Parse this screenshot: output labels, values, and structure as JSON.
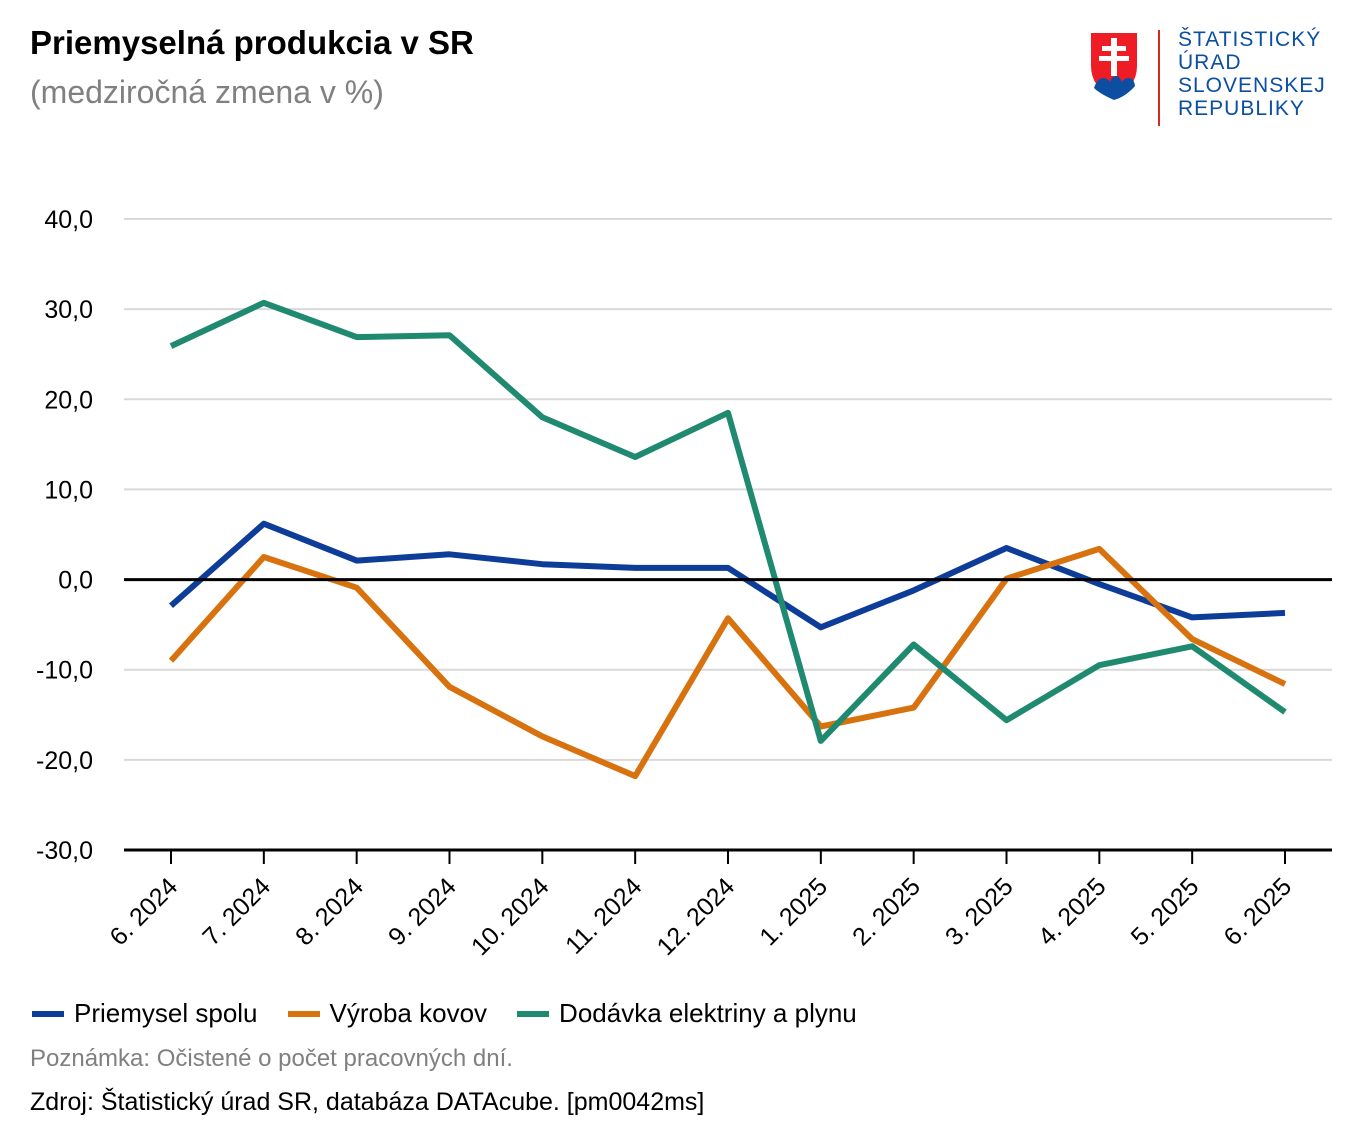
{
  "title": "Priemyselná produkcia v SR",
  "subtitle": "(medziročná zmena v %)",
  "logo": {
    "lines": [
      "ŠTATISTICKÝ",
      "ÚRAD",
      "SLOVENSKEJ",
      "REPUBLIKY"
    ],
    "icon": "slovak-coat-of-arms-icon"
  },
  "colors": {
    "priemysel": "#0e3d99",
    "kovy": "#d7720f",
    "elektrina": "#1f8a70",
    "grid": "#d9d9d9",
    "axis": "#000000"
  },
  "chart_data": {
    "type": "line",
    "categories": [
      "6. 2024",
      "7. 2024",
      "8. 2024",
      "9. 2024",
      "10. 2024",
      "11. 2024",
      "12. 2024",
      "1. 2025",
      "2. 2025",
      "3. 2025",
      "4. 2025",
      "5. 2025",
      "6. 2025"
    ],
    "series": [
      {
        "name": "Priemysel spolu",
        "color": "#0e3d99",
        "values": [
          -2.9,
          6.2,
          2.1,
          2.8,
          1.7,
          1.3,
          1.3,
          -5.3,
          -1.2,
          3.5,
          -0.5,
          -4.2,
          -3.7
        ]
      },
      {
        "name": "Výroba kovov",
        "color": "#d7720f",
        "values": [
          -9.0,
          2.5,
          -0.9,
          -11.9,
          -17.4,
          -21.8,
          -4.3,
          -16.3,
          -14.2,
          0.1,
          3.4,
          -6.6,
          -11.6
        ]
      },
      {
        "name": "Dodávka elektriny a plynu",
        "color": "#1f8a70",
        "values": [
          25.9,
          30.7,
          26.9,
          27.1,
          18.0,
          13.6,
          18.5,
          -17.9,
          -7.2,
          -15.6,
          -9.5,
          -7.4,
          -14.7
        ]
      }
    ],
    "yticks": [
      "40,0",
      "30,0",
      "20,0",
      "10,0",
      "0,0",
      "-10,0",
      "-20,0",
      "-30,0"
    ],
    "ylim": [
      -30,
      40
    ],
    "grid": true,
    "legend_position": "bottom-left"
  },
  "note": "Poznámka: Očistené o počet pracovných dní.",
  "source": "Zdroj: Štatistický úrad SR, databáza DATAcube. [pm0042ms]"
}
